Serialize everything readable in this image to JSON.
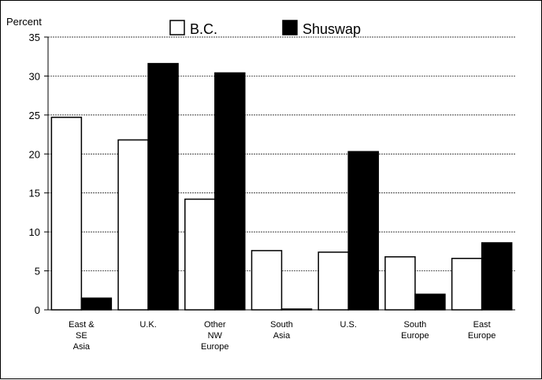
{
  "chart_data": {
    "type": "bar",
    "ylabel": "Percent",
    "ylim": [
      0,
      35
    ],
    "yticks": [
      0,
      5,
      10,
      15,
      20,
      25,
      30,
      35
    ],
    "grid": true,
    "legend_position": "top",
    "categories": [
      [
        "East &",
        "SE",
        "Asia"
      ],
      [
        "U.K."
      ],
      [
        "Other",
        "NW",
        "Europe"
      ],
      [
        "South",
        "Asia"
      ],
      [
        "U.S."
      ],
      [
        "South",
        "Europe"
      ],
      [
        "East",
        "Europe"
      ]
    ],
    "series": [
      {
        "name": "B.C.",
        "color": "#ffffff",
        "values": [
          24.7,
          21.8,
          14.2,
          7.6,
          7.4,
          6.8,
          6.6
        ]
      },
      {
        "name": "Shuswap",
        "color": "#000000",
        "values": [
          1.5,
          31.6,
          30.4,
          0.1,
          20.3,
          2.0,
          8.6
        ]
      }
    ]
  }
}
